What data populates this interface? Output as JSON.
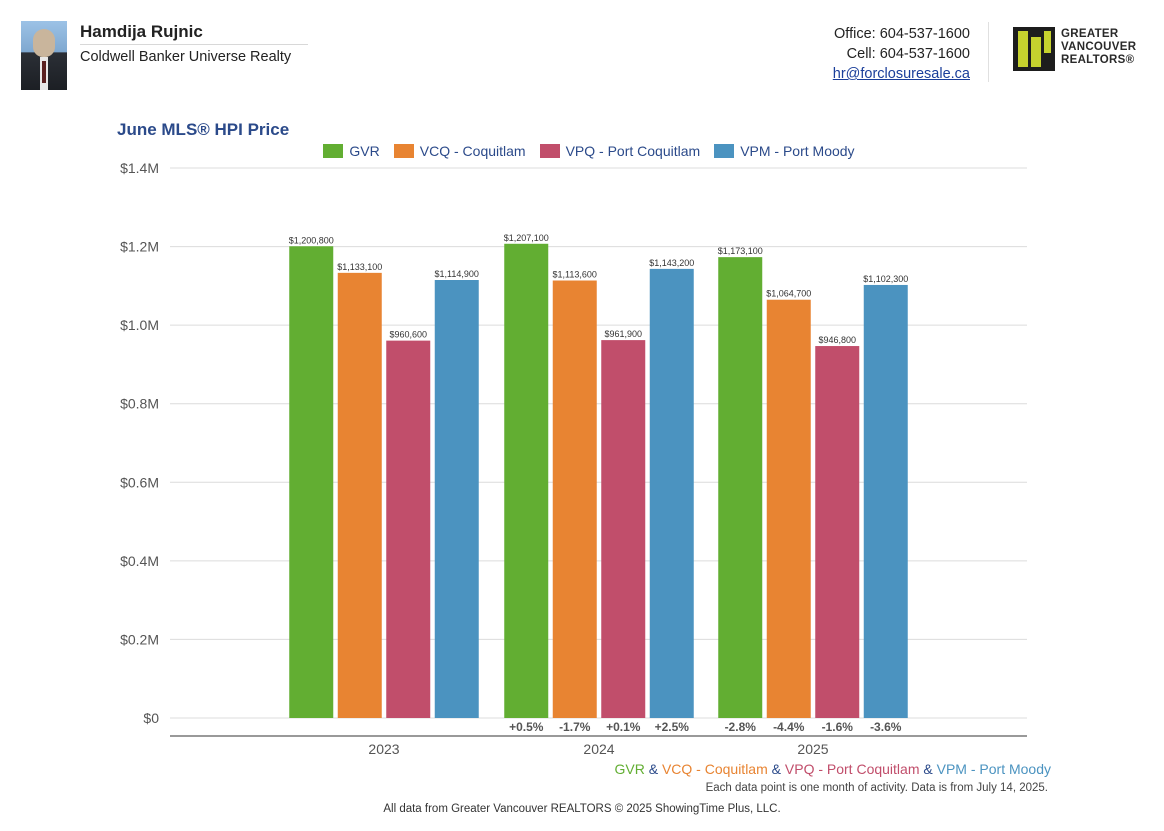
{
  "agent": {
    "name": "Hamdija Rujnic",
    "company": "Coldwell Banker Universe Realty",
    "office": "Office: 604-537-1600",
    "cell": "Cell: 604-537-1600",
    "email": "hr@forclosuresale.ca"
  },
  "logo": {
    "line1": "GREATER",
    "line2": "VANCOUVER",
    "line3": "REALTORS®"
  },
  "colors": {
    "GVR": "#62ae32",
    "VCQ": "#e88432",
    "VPQ": "#c14e6b",
    "VPM": "#4b93c0",
    "title": "#2b4a8a"
  },
  "legend": [
    {
      "key": "GVR",
      "label": "GVR"
    },
    {
      "key": "VCQ",
      "label": "VCQ - Coquitlam"
    },
    {
      "key": "VPQ",
      "label": "VPQ - Port Coquitlam"
    },
    {
      "key": "VPM",
      "label": "VPM - Port Moody"
    }
  ],
  "chart_data": {
    "type": "bar",
    "title": "June MLS® HPI Price",
    "xlabel": "",
    "ylabel": "",
    "ylim": [
      0,
      1400000
    ],
    "yticks": [
      0,
      200000,
      400000,
      600000,
      800000,
      1000000,
      1200000,
      1400000
    ],
    "ytick_labels": [
      "$0",
      "$0.2M",
      "$0.4M",
      "$0.6M",
      "$0.8M",
      "$1.0M",
      "$1.2M",
      "$1.4M"
    ],
    "categories": [
      "2023",
      "2024",
      "2025"
    ],
    "series": [
      {
        "key": "GVR",
        "name": "GVR",
        "values": [
          1200800,
          1207100,
          1173100
        ],
        "labels": [
          "$1,200,800",
          "$1,207,100",
          "$1,173,100"
        ],
        "changes": [
          "",
          "+0.5%",
          "-2.8%"
        ]
      },
      {
        "key": "VCQ",
        "name": "VCQ - Coquitlam",
        "values": [
          1133100,
          1113600,
          1064700
        ],
        "labels": [
          "$1,133,100",
          "$1,113,600",
          "$1,064,700"
        ],
        "changes": [
          "",
          "-1.7%",
          "-4.4%"
        ]
      },
      {
        "key": "VPQ",
        "name": "VPQ - Port Coquitlam",
        "values": [
          960600,
          961900,
          946800
        ],
        "labels": [
          "$960,600",
          "$961,900",
          "$946,800"
        ],
        "changes": [
          "",
          "+0.1%",
          "-1.6%"
        ]
      },
      {
        "key": "VPM",
        "name": "VPM - Port Moody",
        "values": [
          1114900,
          1143200,
          1102300
        ],
        "labels": [
          "$1,114,900",
          "$1,143,200",
          "$1,102,300"
        ],
        "changes": [
          "",
          "+2.5%",
          "-3.6%"
        ]
      }
    ]
  },
  "footer": {
    "amp": "&",
    "note": "Each data point is one month of activity. Data is from July 14, 2025.",
    "source": "All data from Greater Vancouver REALTORS © 2025 ShowingTime Plus, LLC."
  }
}
